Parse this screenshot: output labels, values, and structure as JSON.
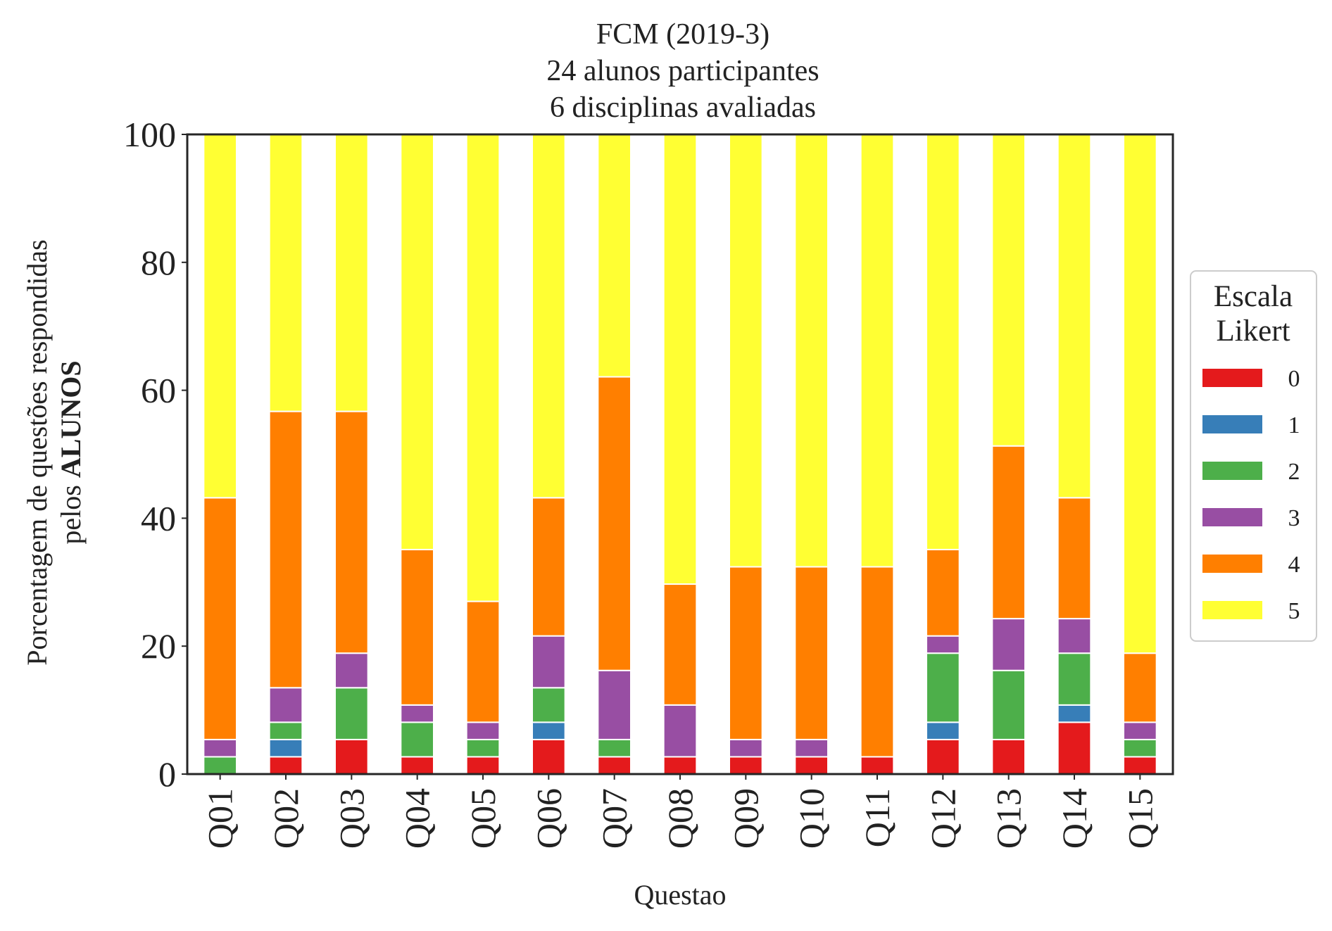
{
  "chart_data": {
    "type": "bar",
    "stacked": true,
    "title_lines": [
      "FCM (2019-3)",
      "24 alunos participantes",
      "6 disciplinas avaliadas"
    ],
    "xlabel": "Questao",
    "ylabel_line1": "Porcentagem de questões respondidas",
    "ylabel_line2_prefix": "pelos ",
    "ylabel_line2_bold": "ALUNOS",
    "ylim": [
      0,
      100
    ],
    "yticks": [
      "0",
      "20",
      "40",
      "60",
      "80",
      "100"
    ],
    "grid": false,
    "legend": {
      "title_lines": [
        "Escala",
        "Likert"
      ],
      "placement": "center-right"
    },
    "categories": [
      "Q01",
      "Q02",
      "Q03",
      "Q04",
      "Q05",
      "Q06",
      "Q07",
      "Q08",
      "Q09",
      "Q10",
      "Q11",
      "Q12",
      "Q13",
      "Q14",
      "Q15"
    ],
    "series": [
      {
        "name": "0",
        "color": "#e41a1c",
        "values": [
          0,
          2.7,
          5.4,
          2.7,
          2.7,
          5.4,
          2.7,
          2.7,
          2.7,
          2.7,
          2.7,
          5.4,
          5.4,
          8.1,
          2.7
        ]
      },
      {
        "name": "1",
        "color": "#377eb8",
        "values": [
          0,
          2.7,
          0,
          0,
          0,
          2.7,
          0,
          0,
          0,
          0,
          0,
          2.7,
          0,
          2.7,
          0
        ]
      },
      {
        "name": "2",
        "color": "#4daf4a",
        "values": [
          2.7,
          2.7,
          8.1,
          5.4,
          2.7,
          5.4,
          2.7,
          0,
          0,
          0,
          0,
          10.8,
          10.8,
          8.1,
          2.7
        ]
      },
      {
        "name": "3",
        "color": "#984ea3",
        "values": [
          2.7,
          5.4,
          5.4,
          2.7,
          2.7,
          8.1,
          10.8,
          8.1,
          2.7,
          2.7,
          0,
          2.7,
          8.1,
          5.4,
          2.7
        ]
      },
      {
        "name": "4",
        "color": "#ff7f00",
        "values": [
          37.8,
          43.2,
          37.8,
          24.3,
          18.9,
          21.6,
          45.9,
          18.9,
          27.0,
          27.0,
          29.7,
          13.5,
          27.0,
          18.9,
          10.8
        ]
      },
      {
        "name": "5",
        "color": "#ffff33",
        "values": [
          56.8,
          43.3,
          43.3,
          64.9,
          73.0,
          56.8,
          37.9,
          70.3,
          67.6,
          67.6,
          67.6,
          64.9,
          48.7,
          56.8,
          81.1
        ]
      }
    ]
  }
}
